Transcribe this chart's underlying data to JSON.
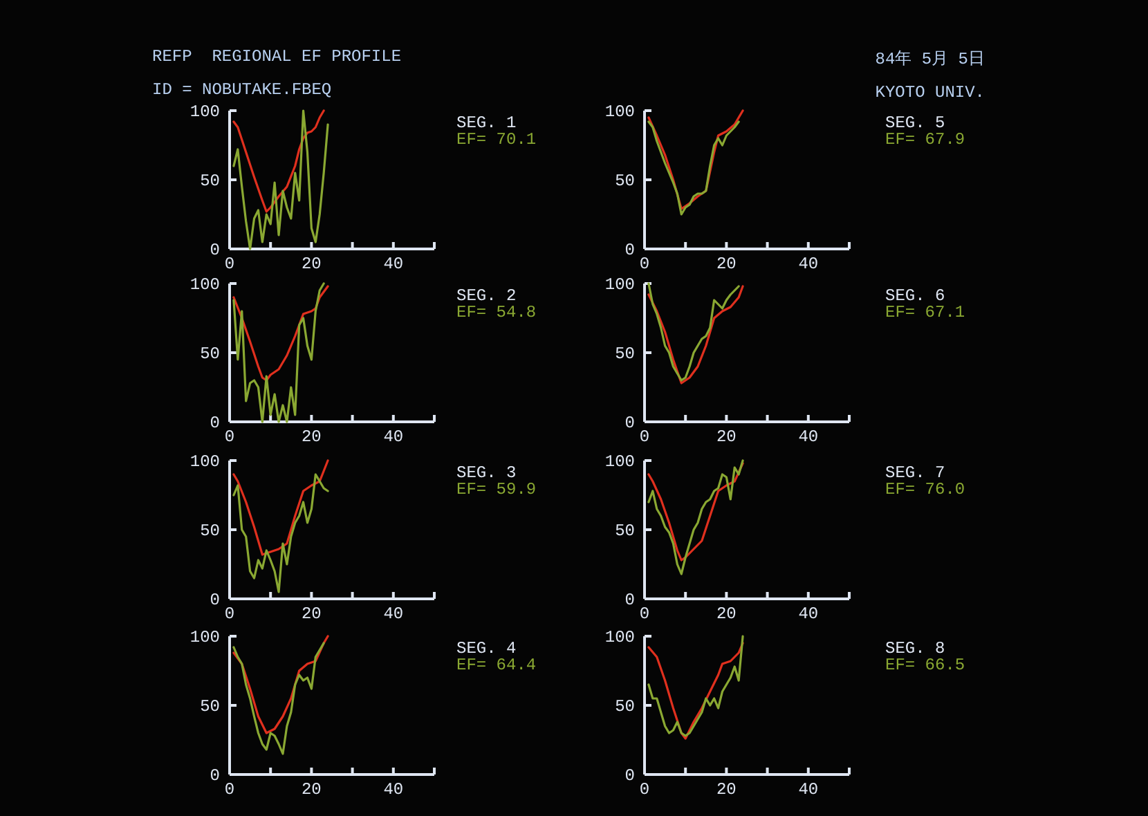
{
  "chart_data": [
    {
      "type": "line",
      "annotations": [
        "REFP  REGIONAL EF PROFILE",
        "ID = NOBUTAKE.FBEQ",
        "84年 5月 5日",
        "KYOTO UNIV.",
        "SEG. 1",
        "EF= 70.1"
      ],
      "xlim": [
        0,
        50
      ],
      "xticks": [
        0,
        {
          "value": 10,
          "label": null
        },
        20,
        {
          "value": 30,
          "label": null
        },
        40,
        {
          "value": 50,
          "label": null
        }
      ],
      "ylim": [
        0,
        100
      ],
      "yticks": [
        0,
        50,
        100
      ],
      "series": [
        {
          "color": "#e0301e",
          "x": [
            1,
            2,
            4,
            6,
            8,
            9,
            10,
            12,
            14,
            16,
            17,
            18,
            19,
            20,
            21,
            22,
            23
          ],
          "values": [
            92,
            88,
            70,
            52,
            35,
            27,
            30,
            38,
            45,
            60,
            72,
            80,
            84,
            85,
            88,
            95,
            100
          ]
        },
        {
          "color": "#8aa832",
          "x": [
            1,
            2,
            3,
            4,
            5,
            6,
            7,
            8,
            9,
            10,
            11,
            12,
            13,
            14,
            15,
            16,
            17,
            18,
            19,
            20,
            21,
            22,
            23,
            24
          ],
          "values": [
            60,
            72,
            45,
            20,
            0,
            22,
            28,
            5,
            25,
            18,
            48,
            10,
            42,
            30,
            22,
            55,
            35,
            100,
            70,
            15,
            5,
            25,
            55,
            90
          ]
        }
      ]
    },
    {
      "type": "line",
      "annotations": [
        "SEG. 2",
        "EF= 54.8"
      ],
      "xlim": [
        0,
        50
      ],
      "xticks": [
        0,
        {
          "value": 10,
          "label": null
        },
        20,
        {
          "value": 30,
          "label": null
        },
        40,
        {
          "value": 50,
          "label": null
        }
      ],
      "ylim": [
        0,
        100
      ],
      "yticks": [
        0,
        50,
        100
      ],
      "series": [
        {
          "color": "#e0301e",
          "x": [
            1,
            3,
            5,
            7,
            8,
            9,
            10,
            12,
            14,
            16,
            18,
            20,
            21,
            22,
            24
          ],
          "values": [
            90,
            75,
            58,
            40,
            32,
            30,
            34,
            38,
            48,
            62,
            78,
            80,
            82,
            90,
            98
          ]
        },
        {
          "color": "#8aa832",
          "x": [
            1,
            2,
            3,
            4,
            5,
            6,
            7,
            8,
            9,
            10,
            11,
            12,
            13,
            14,
            15,
            16,
            17,
            18,
            19,
            20,
            21,
            22,
            23
          ],
          "values": [
            88,
            45,
            80,
            15,
            28,
            30,
            25,
            0,
            33,
            5,
            20,
            0,
            12,
            0,
            25,
            5,
            70,
            75,
            55,
            45,
            80,
            95,
            100
          ]
        }
      ]
    },
    {
      "type": "line",
      "annotations": [
        "SEG. 3",
        "EF= 59.9"
      ],
      "xlim": [
        0,
        50
      ],
      "xticks": [
        0,
        {
          "value": 10,
          "label": null
        },
        20,
        {
          "value": 30,
          "label": null
        },
        40,
        {
          "value": 50,
          "label": null
        }
      ],
      "ylim": [
        0,
        100
      ],
      "yticks": [
        0,
        50,
        100
      ],
      "series": [
        {
          "color": "#e0301e",
          "x": [
            1,
            2,
            4,
            6,
            8,
            10,
            12,
            14,
            16,
            18,
            20,
            22,
            24
          ],
          "values": [
            90,
            85,
            70,
            52,
            32,
            34,
            36,
            40,
            60,
            78,
            82,
            85,
            100
          ]
        },
        {
          "color": "#8aa832",
          "x": [
            1,
            2,
            3,
            4,
            5,
            6,
            7,
            8,
            9,
            10,
            11,
            12,
            13,
            14,
            15,
            16,
            17,
            18,
            19,
            20,
            21,
            22,
            23,
            24
          ],
          "values": [
            75,
            82,
            50,
            45,
            20,
            15,
            28,
            22,
            35,
            28,
            20,
            5,
            40,
            25,
            45,
            55,
            60,
            70,
            55,
            65,
            90,
            85,
            80,
            78
          ]
        }
      ]
    },
    {
      "type": "line",
      "annotations": [
        "SEG. 4",
        "EF= 64.4"
      ],
      "xlim": [
        0,
        50
      ],
      "xticks": [
        0,
        {
          "value": 10,
          "label": null
        },
        20,
        {
          "value": 30,
          "label": null
        },
        40,
        {
          "value": 50,
          "label": null
        }
      ],
      "ylim": [
        0,
        100
      ],
      "yticks": [
        0,
        50,
        100
      ],
      "series": [
        {
          "color": "#e0301e",
          "x": [
            1,
            3,
            5,
            7,
            9,
            11,
            13,
            15,
            17,
            19,
            21,
            23,
            24
          ],
          "values": [
            88,
            80,
            62,
            42,
            30,
            33,
            42,
            55,
            75,
            80,
            82,
            95,
            100
          ]
        },
        {
          "color": "#8aa832",
          "x": [
            1,
            2,
            3,
            4,
            5,
            6,
            7,
            8,
            9,
            10,
            11,
            12,
            13,
            14,
            15,
            16,
            17,
            18,
            19,
            20,
            21,
            22,
            23
          ],
          "values": [
            92,
            85,
            80,
            65,
            55,
            42,
            30,
            22,
            18,
            30,
            28,
            22,
            15,
            35,
            45,
            65,
            72,
            68,
            70,
            62,
            85,
            90,
            95
          ]
        }
      ]
    },
    {
      "type": "line",
      "annotations": [
        "SEG. 5",
        "EF= 67.9"
      ],
      "xlim": [
        0,
        50
      ],
      "xticks": [
        0,
        {
          "value": 10,
          "label": null
        },
        20,
        {
          "value": 30,
          "label": null
        },
        40,
        {
          "value": 50,
          "label": null
        }
      ],
      "ylim": [
        0,
        100
      ],
      "yticks": [
        0,
        50,
        100
      ],
      "series": [
        {
          "color": "#e0301e",
          "x": [
            1,
            3,
            5,
            7,
            9,
            11,
            13,
            15,
            17,
            18,
            20,
            22,
            24
          ],
          "values": [
            95,
            82,
            68,
            50,
            29,
            33,
            38,
            42,
            70,
            82,
            85,
            90,
            100
          ]
        },
        {
          "color": "#8aa832",
          "x": [
            1,
            2,
            3,
            4,
            5,
            6,
            7,
            8,
            9,
            10,
            11,
            12,
            13,
            14,
            15,
            16,
            17,
            18,
            19,
            20,
            21,
            22,
            23
          ],
          "values": [
            92,
            88,
            78,
            70,
            62,
            55,
            48,
            40,
            25,
            30,
            32,
            38,
            40,
            40,
            42,
            60,
            75,
            80,
            75,
            82,
            85,
            88,
            92
          ]
        }
      ]
    },
    {
      "type": "line",
      "annotations": [
        "SEG. 6",
        "EF= 67.1"
      ],
      "xlim": [
        0,
        50
      ],
      "xticks": [
        0,
        {
          "value": 10,
          "label": null
        },
        20,
        {
          "value": 30,
          "label": null
        },
        40,
        {
          "value": 50,
          "label": null
        }
      ],
      "ylim": [
        0,
        100
      ],
      "yticks": [
        0,
        50,
        100
      ],
      "series": [
        {
          "color": "#e0301e",
          "x": [
            1,
            3,
            5,
            7,
            9,
            11,
            13,
            15,
            17,
            19,
            21,
            23,
            24
          ],
          "values": [
            92,
            80,
            65,
            45,
            28,
            32,
            40,
            55,
            75,
            80,
            83,
            90,
            98
          ]
        },
        {
          "color": "#8aa832",
          "x": [
            1,
            2,
            3,
            4,
            5,
            6,
            7,
            8,
            9,
            10,
            11,
            12,
            13,
            14,
            15,
            16,
            17,
            18,
            19,
            20,
            21,
            22,
            23
          ],
          "values": [
            100,
            85,
            78,
            68,
            55,
            50,
            40,
            35,
            30,
            32,
            40,
            50,
            55,
            60,
            62,
            68,
            88,
            85,
            82,
            88,
            92,
            95,
            98
          ]
        }
      ]
    },
    {
      "type": "line",
      "annotations": [
        "SEG. 7",
        "EF= 76.0"
      ],
      "xlim": [
        0,
        50
      ],
      "xticks": [
        0,
        {
          "value": 10,
          "label": null
        },
        20,
        {
          "value": 30,
          "label": null
        },
        40,
        {
          "value": 50,
          "label": null
        }
      ],
      "ylim": [
        0,
        100
      ],
      "yticks": [
        0,
        50,
        100
      ],
      "series": [
        {
          "color": "#e0301e",
          "x": [
            1,
            2,
            4,
            6,
            8,
            9,
            10,
            12,
            14,
            16,
            18,
            20,
            22,
            24
          ],
          "values": [
            90,
            85,
            72,
            55,
            35,
            28,
            30,
            36,
            42,
            60,
            78,
            82,
            85,
            98
          ]
        },
        {
          "color": "#8aa832",
          "x": [
            1,
            2,
            3,
            4,
            5,
            6,
            7,
            8,
            9,
            10,
            11,
            12,
            13,
            14,
            15,
            16,
            17,
            18,
            19,
            20,
            21,
            22,
            23,
            24
          ],
          "values": [
            70,
            78,
            65,
            60,
            52,
            48,
            40,
            25,
            18,
            30,
            40,
            50,
            55,
            65,
            70,
            72,
            78,
            80,
            90,
            88,
            72,
            95,
            90,
            100
          ]
        }
      ]
    },
    {
      "type": "line",
      "annotations": [
        "SEG. 8",
        "EF= 66.5"
      ],
      "xlim": [
        0,
        50
      ],
      "xticks": [
        0,
        {
          "value": 10,
          "label": null
        },
        20,
        {
          "value": 30,
          "label": null
        },
        40,
        {
          "value": 50,
          "label": null
        }
      ],
      "ylim": [
        0,
        100
      ],
      "yticks": [
        0,
        50,
        100
      ],
      "series": [
        {
          "color": "#e0301e",
          "x": [
            1,
            3,
            5,
            7,
            9,
            10,
            12,
            14,
            16,
            18,
            19,
            21,
            23,
            24
          ],
          "values": [
            92,
            85,
            68,
            48,
            30,
            26,
            38,
            48,
            60,
            72,
            80,
            82,
            88,
            95
          ]
        },
        {
          "color": "#8aa832",
          "x": [
            1,
            2,
            3,
            4,
            5,
            6,
            7,
            8,
            9,
            10,
            11,
            12,
            13,
            14,
            15,
            16,
            17,
            18,
            19,
            20,
            21,
            22,
            23,
            24
          ],
          "values": [
            65,
            55,
            55,
            45,
            35,
            30,
            32,
            38,
            30,
            28,
            30,
            35,
            40,
            45,
            55,
            50,
            55,
            48,
            60,
            65,
            70,
            78,
            68,
            100
          ]
        }
      ]
    }
  ]
}
